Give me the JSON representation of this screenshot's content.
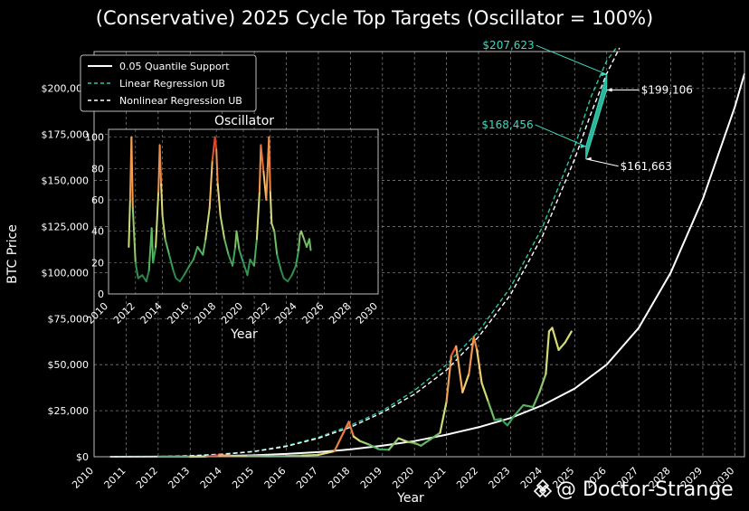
{
  "title": "(Conservative) 2025 Cycle Top Targets (Oscillator = 100%)",
  "watermark": "@ Doctor-Strange",
  "colors": {
    "background": "#000000",
    "grid": "#7a7a7a",
    "support": "#ffffff",
    "linear_ub": "#2ec4a6",
    "nonlinear_ub": "#ffffff",
    "target_band": "#36d3b6",
    "label_teal": "#3fd8c0"
  },
  "chart_data": [
    {
      "type": "line",
      "name": "main",
      "title": "",
      "xlabel": "Year",
      "ylabel": "BTC Price",
      "xlim": [
        2010,
        2030.3
      ],
      "ylim": [
        0,
        220000
      ],
      "x_ticks": [
        "2010",
        "2011",
        "2012",
        "2013",
        "2014",
        "2015",
        "2016",
        "2017",
        "2018",
        "2019",
        "2020",
        "2021",
        "2022",
        "2023",
        "2024",
        "2025",
        "2026",
        "2027",
        "2028",
        "2029",
        "2030"
      ],
      "y_ticks": [
        {
          "value": 0,
          "label": "$0"
        },
        {
          "value": 25000,
          "label": "$25,000"
        },
        {
          "value": 50000,
          "label": "$50,000"
        },
        {
          "value": 75000,
          "label": "$75,000"
        },
        {
          "value": 100000,
          "label": "$100,000"
        },
        {
          "value": 125000,
          "label": "$125,000"
        },
        {
          "value": 150000,
          "label": "$150,000"
        },
        {
          "value": 175000,
          "label": "$175,000"
        },
        {
          "value": 200000,
          "label": "$200,000"
        }
      ],
      "grid": true,
      "legend_position": "top-left",
      "series": [
        {
          "name": "0.05 Quantile Support",
          "style": "solid",
          "color": "#ffffff",
          "x": [
            2010.5,
            2012,
            2013,
            2014,
            2015,
            2016,
            2017,
            2018,
            2019,
            2020,
            2021,
            2022,
            2023,
            2024,
            2025,
            2026,
            2027,
            2028,
            2029,
            2030,
            2030.3
          ],
          "y": [
            0,
            50,
            150,
            400,
            800,
            1500,
            2500,
            4000,
            6000,
            8500,
            12000,
            16000,
            21000,
            28000,
            37000,
            50000,
            70000,
            100000,
            140000,
            190000,
            208000
          ]
        },
        {
          "name": "Linear Regression UB",
          "style": "dashed",
          "color": "#2ec4a6",
          "x": [
            2010.5,
            2012,
            2013,
            2014,
            2015,
            2016,
            2017,
            2018,
            2019,
            2020,
            2021,
            2022,
            2023,
            2024,
            2025,
            2025.5,
            2026,
            2026.3
          ],
          "y": [
            0,
            200,
            600,
            1500,
            3000,
            6000,
            10500,
            17000,
            25000,
            36000,
            50000,
            68000,
            92000,
            125000,
            168456,
            195000,
            215000,
            222000
          ]
        },
        {
          "name": "Nonlinear Regression UB",
          "style": "dashed",
          "color": "#ffffff",
          "x": [
            2010.5,
            2012,
            2013,
            2014,
            2015,
            2016,
            2017,
            2018,
            2019,
            2020,
            2021,
            2022,
            2023,
            2024,
            2025,
            2025.5,
            2026,
            2026.4
          ],
          "y": [
            0,
            150,
            500,
            1300,
            2800,
            5600,
            10000,
            16000,
            24000,
            34000,
            47000,
            65000,
            88000,
            120000,
            161663,
            186000,
            208000,
            222000
          ]
        },
        {
          "name": "BTC Price",
          "style": "solid",
          "color": "oscillator",
          "x": [
            2012.0,
            2012.5,
            2013.0,
            2013.5,
            2013.9,
            2014.3,
            2014.8,
            2015.5,
            2016.0,
            2016.5,
            2017.0,
            2017.5,
            2017.95,
            2018.1,
            2018.3,
            2018.6,
            2018.9,
            2019.2,
            2019.5,
            2019.8,
            2020.0,
            2020.2,
            2020.5,
            2020.8,
            2021.0,
            2021.15,
            2021.3,
            2021.5,
            2021.7,
            2021.85,
            2021.95,
            2022.1,
            2022.3,
            2022.5,
            2022.7,
            2022.9,
            2023.1,
            2023.4,
            2023.7,
            2023.9,
            2024.1,
            2024.2,
            2024.3,
            2024.5,
            2024.7,
            2024.8,
            2024.9
          ],
          "y": [
            5,
            10,
            15,
            100,
            900,
            500,
            350,
            250,
            400,
            650,
            1000,
            3000,
            19000,
            11000,
            8500,
            6500,
            4000,
            3800,
            10000,
            8000,
            7500,
            6000,
            9500,
            13000,
            30000,
            55000,
            60000,
            35000,
            45000,
            65000,
            58000,
            40000,
            30000,
            20000,
            20500,
            17000,
            22000,
            28000,
            27000,
            35000,
            45000,
            68000,
            70000,
            58000,
            62000,
            65000,
            68000
          ],
          "osc": [
            10,
            12,
            14,
            95,
            98,
            55,
            40,
            25,
            30,
            40,
            45,
            70,
            100,
            70,
            45,
            35,
            25,
            22,
            50,
            40,
            35,
            30,
            30,
            35,
            60,
            95,
            90,
            60,
            75,
            85,
            80,
            55,
            40,
            25,
            22,
            20,
            25,
            30,
            28,
            35,
            40,
            60,
            60,
            45,
            50,
            52,
            55
          ]
        }
      ],
      "annotations": [
        {
          "text": "$207,623",
          "x": 2026.0,
          "y": 207623,
          "color": "#3fd8c0"
        },
        {
          "text": "$199,106",
          "x": 2026.0,
          "y": 199106,
          "color": "#ffffff"
        },
        {
          "text": "$168,456",
          "x": 2025.35,
          "y": 168456,
          "color": "#3fd8c0"
        },
        {
          "text": "$161,663",
          "x": 2025.35,
          "y": 161663,
          "color": "#ffffff"
        }
      ],
      "target_band": {
        "x": [
          2025.35,
          2026.0
        ],
        "low": [
          161663,
          199106
        ],
        "high": [
          168456,
          207623
        ]
      }
    },
    {
      "type": "line",
      "name": "inset",
      "title": "Oscillator",
      "xlabel": "Year",
      "ylabel": "",
      "xlim": [
        2010,
        2030
      ],
      "ylim": [
        0,
        105
      ],
      "x_ticks": [
        "2010",
        "2012",
        "2014",
        "2016",
        "2018",
        "2020",
        "2022",
        "2024",
        "2026",
        "2028",
        "2030"
      ],
      "y_ticks": [
        {
          "value": 0,
          "label": "0"
        },
        {
          "value": 20,
          "label": "20"
        },
        {
          "value": 40,
          "label": "40"
        },
        {
          "value": 60,
          "label": "60"
        },
        {
          "value": 80,
          "label": "80"
        },
        {
          "value": 100,
          "label": "100"
        }
      ],
      "grid": true,
      "series": [
        {
          "name": "Oscillator",
          "x": [
            2011.5,
            2011.6,
            2011.7,
            2011.8,
            2012.0,
            2012.2,
            2012.5,
            2012.8,
            2013.0,
            2013.2,
            2013.3,
            2013.5,
            2013.7,
            2013.8,
            2013.9,
            2014.0,
            2014.2,
            2014.5,
            2014.8,
            2015.0,
            2015.3,
            2015.6,
            2016.0,
            2016.3,
            2016.6,
            2017.0,
            2017.2,
            2017.5,
            2017.7,
            2017.9,
            2018.0,
            2018.1,
            2018.3,
            2018.6,
            2018.9,
            2019.2,
            2019.4,
            2019.5,
            2019.7,
            2020.0,
            2020.3,
            2020.5,
            2020.8,
            2021.0,
            2021.2,
            2021.3,
            2021.5,
            2021.7,
            2021.9,
            2022.0,
            2022.1,
            2022.3,
            2022.5,
            2022.8,
            2023.0,
            2023.3,
            2023.6,
            2023.9,
            2024.1,
            2024.2,
            2024.3,
            2024.5,
            2024.7,
            2024.9,
            2025.0
          ],
          "y": [
            30,
            60,
            100,
            55,
            20,
            10,
            12,
            8,
            15,
            42,
            20,
            30,
            65,
            95,
            70,
            50,
            35,
            25,
            15,
            10,
            8,
            12,
            18,
            22,
            30,
            25,
            35,
            55,
            85,
            100,
            92,
            70,
            50,
            35,
            25,
            18,
            30,
            40,
            28,
            20,
            12,
            22,
            18,
            35,
            65,
            95,
            78,
            60,
            100,
            65,
            45,
            40,
            25,
            15,
            10,
            8,
            12,
            18,
            28,
            38,
            40,
            35,
            30,
            35,
            28
          ]
        }
      ]
    }
  ]
}
